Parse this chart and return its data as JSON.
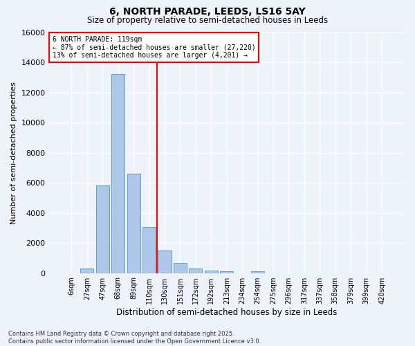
{
  "title": "6, NORTH PARADE, LEEDS, LS16 5AY",
  "subtitle": "Size of property relative to semi-detached houses in Leeds",
  "xlabel": "Distribution of semi-detached houses by size in Leeds",
  "ylabel": "Number of semi-detached properties",
  "bar_labels": [
    "6sqm",
    "27sqm",
    "47sqm",
    "68sqm",
    "89sqm",
    "110sqm",
    "130sqm",
    "151sqm",
    "172sqm",
    "192sqm",
    "213sqm",
    "234sqm",
    "254sqm",
    "275sqm",
    "296sqm",
    "317sqm",
    "337sqm",
    "358sqm",
    "379sqm",
    "399sqm",
    "420sqm"
  ],
  "bar_values": [
    0,
    300,
    5800,
    13200,
    6600,
    3050,
    1500,
    650,
    300,
    180,
    130,
    0,
    100,
    0,
    0,
    0,
    0,
    0,
    0,
    0,
    0
  ],
  "bar_color": "#aec6e8",
  "bar_edge_color": "#5a9fd4",
  "vline_x": 5.5,
  "vline_color": "red",
  "pct_smaller": 87,
  "n_smaller": 27220,
  "pct_larger": 13,
  "n_larger": 4201,
  "annotation_label": "6 NORTH PARADE: 119sqm",
  "ylim": [
    0,
    16000
  ],
  "yticks": [
    0,
    2000,
    4000,
    6000,
    8000,
    10000,
    12000,
    14000,
    16000
  ],
  "footer1": "Contains HM Land Registry data © Crown copyright and database right 2025.",
  "footer2": "Contains public sector information licensed under the Open Government Licence v3.0.",
  "background_color": "#eef2f9",
  "grid_color": "#ffffff"
}
